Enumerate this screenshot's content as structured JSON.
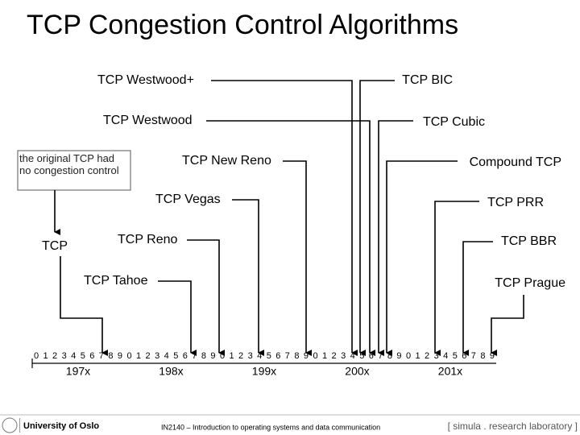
{
  "title": "TCP Congestion Control Algorithms",
  "note": "the original TCP had no congestion control",
  "algorithms": [
    "TCP",
    "TCP Tahoe",
    "TCP Reno",
    "TCP Vegas",
    "TCP New Reno",
    "TCP Westwood+",
    "TCP Westwood",
    "TCP BIC",
    "TCP Cubic",
    "Compound TCP",
    "TCP PRR",
    "TCP BBR",
    "TCP Prague"
  ],
  "timeline": {
    "digits": [
      "0",
      "1",
      "2",
      "3",
      "4",
      "5",
      "6",
      "7",
      "8",
      "9"
    ],
    "decades": [
      "197x",
      "198x",
      "199x",
      "200x",
      "201x"
    ]
  },
  "footer": {
    "university": "University of Oslo",
    "course": "IN2140 – Introduction to operating systems and data communication",
    "lab": "[ simula . research laboratory ]"
  }
}
